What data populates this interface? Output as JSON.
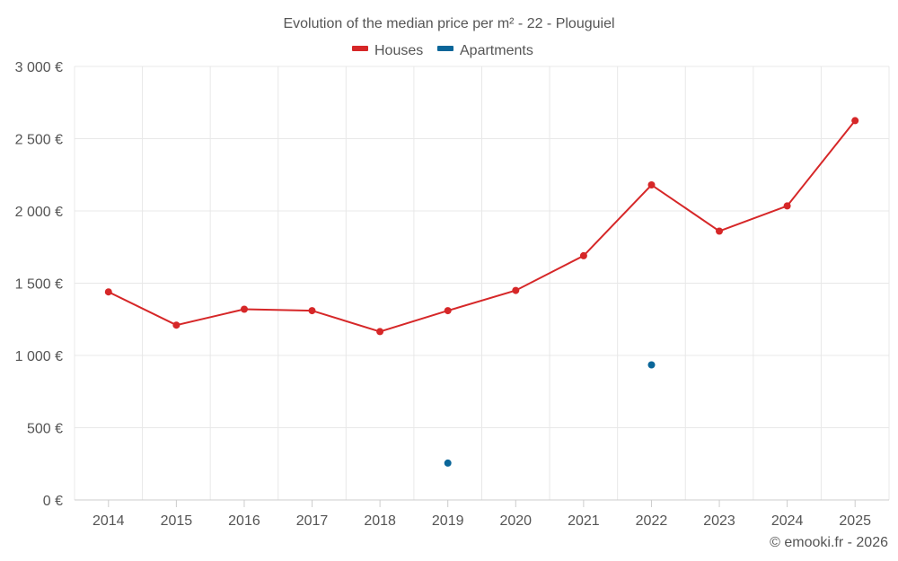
{
  "chart_data": {
    "type": "line",
    "title": "Evolution of the median price per m² - 22 - Plouguiel",
    "categories": [
      "2014",
      "2015",
      "2016",
      "2017",
      "2018",
      "2019",
      "2020",
      "2021",
      "2022",
      "2023",
      "2024",
      "2025"
    ],
    "series": [
      {
        "name": "Houses",
        "color": "#d62728",
        "values": [
          1440,
          1210,
          1320,
          1310,
          1165,
          1310,
          1450,
          1690,
          2180,
          1860,
          2035,
          2625
        ]
      },
      {
        "name": "Apartments",
        "color": "#0a6699",
        "values": [
          null,
          null,
          null,
          null,
          null,
          255,
          null,
          null,
          935,
          null,
          null,
          null
        ]
      }
    ],
    "ylim": [
      0,
      3000
    ],
    "yticks": [
      0,
      500,
      1000,
      1500,
      2000,
      2500,
      3000
    ],
    "ytick_labels": [
      "0 €",
      "500 €",
      "1 000 €",
      "1 500 €",
      "2 000 €",
      "2 500 €",
      "3 000 €"
    ],
    "xlabel": "",
    "ylabel": "",
    "grid": true,
    "legend_position": "top-center"
  },
  "credit": "© emooki.fr - 2026"
}
